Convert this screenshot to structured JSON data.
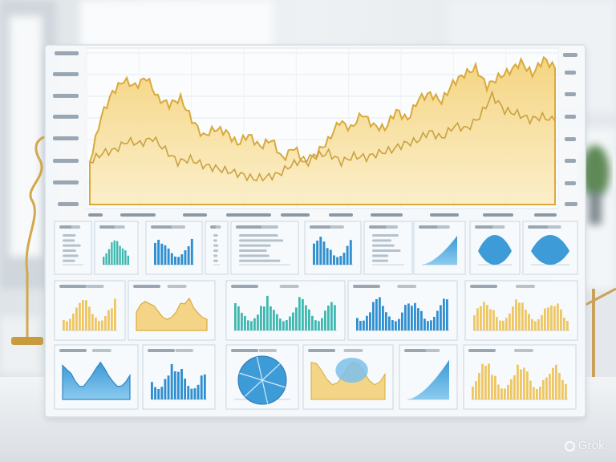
{
  "scene": {
    "description_key": "blurred-office-with-glass-dashboard",
    "colors": {
      "gold_fill": "#f6dc93",
      "gold_line": "#d8aa3c",
      "blue_fill": "#4aa3dc",
      "blue_bar": "#2f8fd0",
      "teal_bar": "#3fb8b0",
      "panel_bg": "#f7fafc",
      "panel_border": "#c9d6e2"
    }
  },
  "watermark": {
    "text": "Grok",
    "icon": "grok-logo-icon"
  },
  "main_chart": {
    "type": "area",
    "upper_series": [
      0.28,
      0.58,
      0.74,
      0.82,
      0.78,
      0.84,
      0.7,
      0.66,
      0.7,
      0.56,
      0.45,
      0.5,
      0.48,
      0.4,
      0.46,
      0.38,
      0.43,
      0.3,
      0.38,
      0.26,
      0.34,
      0.42,
      0.55,
      0.5,
      0.6,
      0.52,
      0.5,
      0.62,
      0.56,
      0.7,
      0.73,
      0.68,
      0.8,
      0.86,
      0.9,
      0.78,
      0.84,
      0.88,
      0.94,
      0.86,
      0.96,
      0.9
    ],
    "lower_series": [
      0.28,
      0.34,
      0.36,
      0.42,
      0.4,
      0.44,
      0.36,
      0.28,
      0.3,
      0.26,
      0.24,
      0.22,
      0.2,
      0.17,
      0.18,
      0.2,
      0.26,
      0.3,
      0.32,
      0.34,
      0.28,
      0.32,
      0.31,
      0.34,
      0.36,
      0.4,
      0.42,
      0.48,
      0.44,
      0.52,
      0.5,
      0.58,
      0.72,
      0.62,
      0.6,
      0.56,
      0.58,
      0.55
    ]
  }
}
